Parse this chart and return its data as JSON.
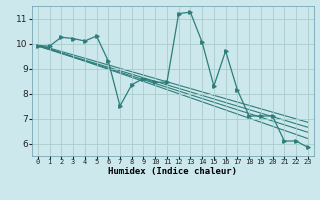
{
  "xlabel": "Humidex (Indice chaleur)",
  "bg_color": "#cce8ec",
  "grid_color": "#aacccc",
  "line_color": "#2e7d7a",
  "xlim": [
    -0.5,
    23.5
  ],
  "ylim": [
    5.5,
    11.5
  ],
  "xticks": [
    0,
    1,
    2,
    3,
    4,
    5,
    6,
    7,
    8,
    9,
    10,
    11,
    12,
    13,
    14,
    15,
    16,
    17,
    18,
    19,
    20,
    21,
    22,
    23
  ],
  "yticks": [
    6,
    7,
    8,
    9,
    10,
    11
  ],
  "main_x": [
    0,
    1,
    2,
    3,
    4,
    5,
    6,
    7,
    8,
    9,
    10,
    11,
    12,
    13,
    14,
    15,
    16,
    17,
    18,
    19,
    20,
    21,
    22,
    23
  ],
  "main_y": [
    9.9,
    9.9,
    10.25,
    10.2,
    10.1,
    10.3,
    9.3,
    7.5,
    8.35,
    8.6,
    8.45,
    8.45,
    11.2,
    11.25,
    10.05,
    8.3,
    9.7,
    8.15,
    7.1,
    7.1,
    7.1,
    6.1,
    6.1,
    5.85
  ],
  "trend1_x": [
    0,
    23
  ],
  "trend1_y": [
    9.95,
    6.2
  ],
  "trend2_x": [
    0,
    23
  ],
  "trend2_y": [
    9.9,
    6.45
  ],
  "trend3_x": [
    0,
    23
  ],
  "trend3_y": [
    9.9,
    6.65
  ],
  "trend4_x": [
    0,
    23
  ],
  "trend4_y": [
    9.95,
    6.85
  ]
}
